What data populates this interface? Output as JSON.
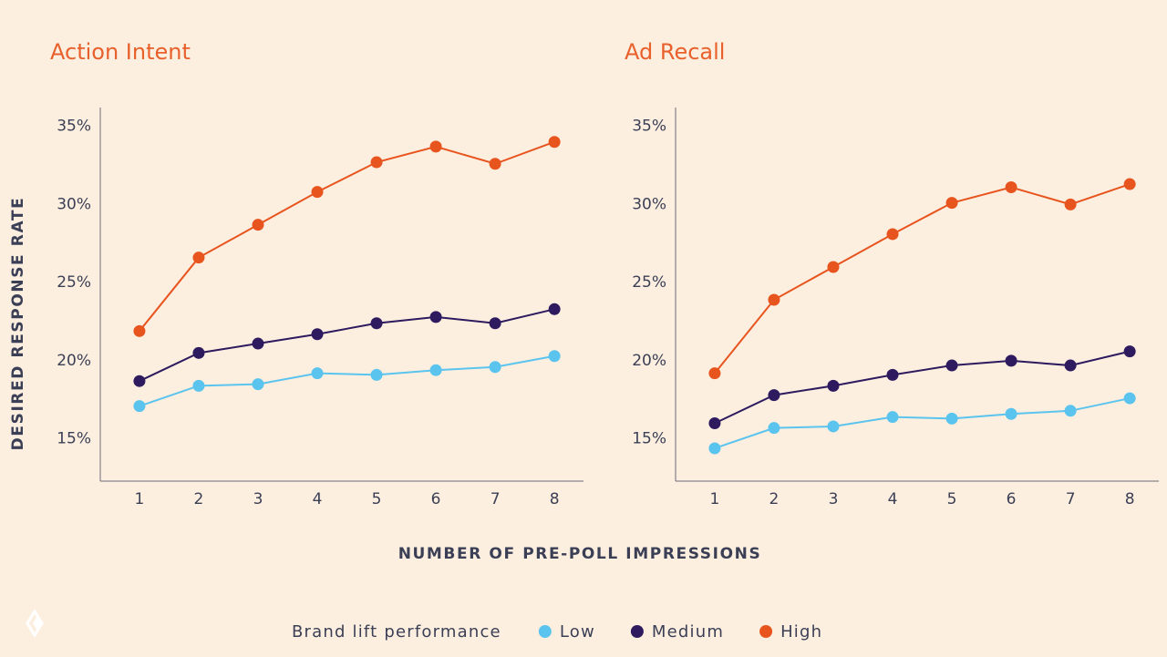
{
  "y_label": "DESIRED RESPONSE RATE",
  "x_label": "NUMBER OF PRE-POLL IMPRESSIONS",
  "legend_title": "Brand lift performance",
  "chart_data": [
    {
      "type": "line",
      "title": "Action Intent",
      "x": [
        1,
        2,
        3,
        4,
        5,
        6,
        7,
        8
      ],
      "xlim": [
        0.34,
        8.49
      ],
      "xticks": [
        1,
        2,
        3,
        4,
        5,
        6,
        7,
        8
      ],
      "ylim": [
        12.3,
        36.2
      ],
      "yticks": [
        {
          "value": 15,
          "label": "15%"
        },
        {
          "value": 20,
          "label": "20%"
        },
        {
          "value": 25,
          "label": "25%"
        },
        {
          "value": 30,
          "label": "30%"
        },
        {
          "value": 35,
          "label": "35%"
        }
      ],
      "series": [
        {
          "name": "Low",
          "color": "#5bc4ee",
          "values": [
            17.1,
            18.4,
            18.5,
            19.2,
            19.1,
            19.4,
            19.6,
            20.3
          ]
        },
        {
          "name": "Medium",
          "color": "#2e1a5e",
          "values": [
            18.7,
            20.5,
            21.1,
            21.7,
            22.4,
            22.8,
            22.4,
            23.3
          ]
        },
        {
          "name": "High",
          "color": "#e8541e",
          "values": [
            21.9,
            26.6,
            28.7,
            30.8,
            32.7,
            33.7,
            32.6,
            34.0
          ]
        }
      ]
    },
    {
      "type": "line",
      "title": "Ad Recall",
      "x": [
        1,
        2,
        3,
        4,
        5,
        6,
        7,
        8
      ],
      "xlim": [
        0.34,
        8.49
      ],
      "xticks": [
        1,
        2,
        3,
        4,
        5,
        6,
        7,
        8
      ],
      "ylim": [
        12.3,
        36.2
      ],
      "yticks": [
        {
          "value": 15,
          "label": "15%"
        },
        {
          "value": 20,
          "label": "20%"
        },
        {
          "value": 25,
          "label": "25%"
        },
        {
          "value": 30,
          "label": "30%"
        },
        {
          "value": 35,
          "label": "35%"
        }
      ],
      "series": [
        {
          "name": "Low",
          "color": "#5bc4ee",
          "values": [
            14.4,
            15.7,
            15.8,
            16.4,
            16.3,
            16.6,
            16.8,
            17.6
          ]
        },
        {
          "name": "Medium",
          "color": "#2e1a5e",
          "values": [
            16.0,
            17.8,
            18.4,
            19.1,
            19.7,
            20.0,
            19.7,
            20.6
          ]
        },
        {
          "name": "High",
          "color": "#e8541e",
          "values": [
            19.2,
            23.9,
            26.0,
            28.1,
            30.1,
            31.1,
            30.0,
            31.3
          ]
        }
      ]
    }
  ]
}
